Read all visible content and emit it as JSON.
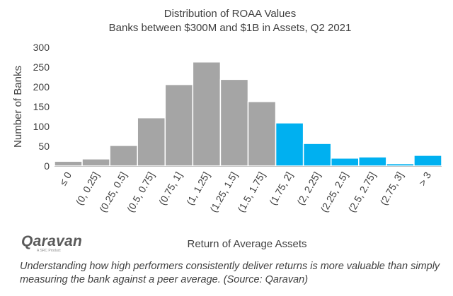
{
  "chart_data": {
    "type": "bar",
    "title": [
      "Distribution of ROAA Values",
      "Banks between $300M and $1B in Assets, Q2 2021"
    ],
    "xlabel": "Return of Average Assets",
    "ylabel": "Number of Banks",
    "categories": [
      "≤ 0",
      "(0, 0.25]",
      "(0.25, 0.5]",
      "(0.5, 0.75]",
      "(0.75, 1]",
      "(1, 1.25]",
      "(1.25, 1.5]",
      "(1.5, 1.75]",
      "(1.75, 2]",
      "(2, 2.25]",
      "(2.25, 2.5]",
      "(2.5, 2.75]",
      "(2.75, 3]",
      "> 3"
    ],
    "values": [
      12,
      18,
      52,
      122,
      206,
      263,
      219,
      163,
      109,
      57,
      20,
      23,
      6,
      27
    ],
    "highlight_from_index": 8,
    "colors": {
      "base": "#a5a5a5",
      "highlight": "#00b0f0",
      "outline": "#ffffff"
    },
    "ylim": [
      0,
      300
    ],
    "yticks": [
      0,
      50,
      100,
      150,
      200,
      250,
      300
    ],
    "grid": false,
    "legend": "none"
  },
  "logo": {
    "wordmark": "Qaravan",
    "tagline": "A SRC Product"
  },
  "caption": "Understanding how high performers consistently deliver returns is more valuable than simply measuring the bank against a peer average. (Source: Qaravan)"
}
